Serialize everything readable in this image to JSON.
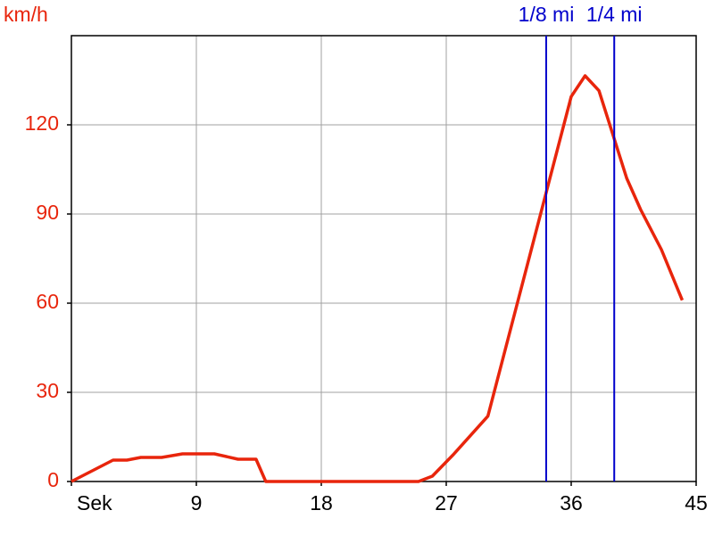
{
  "chart_data": {
    "type": "line",
    "y_label": "km/h",
    "x": [
      0,
      3,
      4,
      5,
      6.5,
      8,
      10.3,
      12,
      13.3,
      14,
      25,
      26,
      27.5,
      30,
      36,
      37,
      38,
      40,
      41,
      42.5,
      44
    ],
    "values": [
      0,
      7.2,
      7.2,
      8.1,
      8.1,
      9.3,
      9.3,
      7.5,
      7.5,
      0,
      0,
      1.8,
      9,
      22,
      129.5,
      136.5,
      131.5,
      102,
      91.5,
      78,
      61
    ],
    "color": "#e8250c",
    "xlim": [
      0,
      45
    ],
    "xticks": [
      {
        "value": 0,
        "label": "Sek"
      },
      9,
      18,
      27,
      36,
      45
    ],
    "ylim": [
      0,
      150
    ],
    "yticks": [
      0,
      30,
      60,
      90,
      120
    ],
    "grid": true,
    "markers": [
      {
        "value": 34.2,
        "label": "1/8 mi"
      },
      {
        "value": 39.1,
        "label": "1/4 mi"
      }
    ],
    "marker_color": "#0000cc"
  }
}
